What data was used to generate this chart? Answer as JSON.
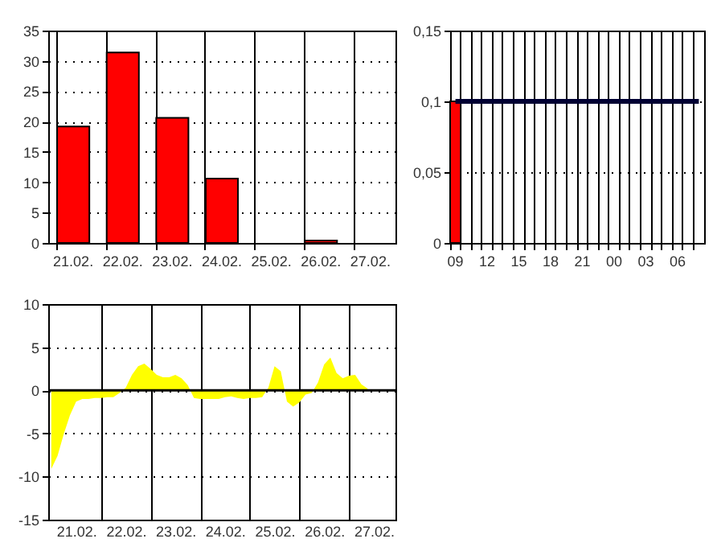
{
  "chart_data": [
    {
      "type": "bar",
      "categories": [
        "21.02.",
        "22.02.",
        "23.02.",
        "24.02.",
        "25.02.",
        "26.02.",
        "27.02."
      ],
      "series": [
        {
          "color": "#ff0000",
          "values": [
            19.2,
            31.4,
            20.6,
            10.6,
            null,
            0.4,
            null
          ]
        }
      ],
      "ylim": [
        0,
        35
      ],
      "yticks": [
        0,
        5,
        10,
        15,
        20,
        25,
        30,
        35
      ],
      "grid": true
    },
    {
      "type": "bar",
      "categories": [
        "09",
        null,
        null,
        "12",
        null,
        null,
        "15",
        null,
        null,
        "18",
        null,
        null,
        "21",
        null,
        null,
        "00",
        null,
        null,
        "03",
        null,
        null,
        "06",
        null,
        null
      ],
      "series": [
        {
          "color": "#ff0000",
          "values": [
            0.1,
            null,
            null,
            null,
            null,
            null,
            null,
            null,
            null,
            null,
            null,
            null,
            null,
            null,
            null,
            null,
            null,
            null,
            null,
            null,
            null,
            null,
            null,
            null
          ]
        },
        {
          "type": "line",
          "color": "#000033",
          "values": [
            0.1,
            0.1,
            0.1,
            0.1,
            0.1,
            0.1,
            0.1,
            0.1,
            0.1,
            0.1,
            0.1,
            0.1,
            0.1,
            0.1,
            0.1,
            0.1,
            0.1,
            0.1,
            0.1,
            0.1,
            0.1,
            0.1,
            0.1,
            0.1
          ]
        }
      ],
      "ylim": [
        0,
        0.15
      ],
      "yticks": [
        0,
        {
          "value": 0.05,
          "label": "0,05"
        },
        {
          "value": 0.1,
          "label": "0,1"
        },
        {
          "value": 0.15,
          "label": "0,15"
        }
      ],
      "grid": true
    },
    {
      "type": "area",
      "categories": [
        null,
        null,
        null,
        null,
        "21.02.",
        null,
        null,
        null,
        null,
        null,
        null,
        null,
        "22.02.",
        null,
        null,
        null,
        null,
        null,
        null,
        null,
        "23.02.",
        null,
        null,
        null,
        null,
        null,
        null,
        null,
        "24.02.",
        null,
        null,
        null,
        null,
        null,
        null,
        null,
        "25.02.",
        null,
        null,
        null,
        null,
        null,
        null,
        null,
        "26.02.",
        null,
        null,
        null,
        null,
        null,
        null,
        null,
        "27.02.",
        null,
        null,
        null
      ],
      "series": [
        {
          "color": "#ffff00",
          "values": [
            -9.1,
            -7.6,
            -5.1,
            -2.9,
            -1.3,
            -1.0,
            -1.0,
            -0.9,
            -0.9,
            -0.8,
            -0.8,
            -0.3,
            0.3,
            1.8,
            2.8,
            3.1,
            2.5,
            1.8,
            1.5,
            1.5,
            1.8,
            1.4,
            0.6,
            -0.9,
            -1.0,
            -1.0,
            -1.0,
            -1.0,
            -0.8,
            -0.7,
            -0.9,
            -1.0,
            -0.9,
            -0.9,
            -0.8,
            0.3,
            2.8,
            2.2,
            -1.3,
            -1.9,
            -1.4,
            -0.5,
            -0.3,
            0.9,
            3.0,
            3.8,
            2.0,
            1.4,
            1.7,
            1.8,
            0.7,
            0.2,
            null,
            null,
            null,
            null
          ]
        }
      ],
      "ylim": [
        -15,
        10
      ],
      "yticks": [
        -15,
        -10,
        -5,
        0,
        5,
        10
      ],
      "grid": true,
      "ref_lines": [
        {
          "axis": "y",
          "value": 0
        }
      ]
    }
  ]
}
